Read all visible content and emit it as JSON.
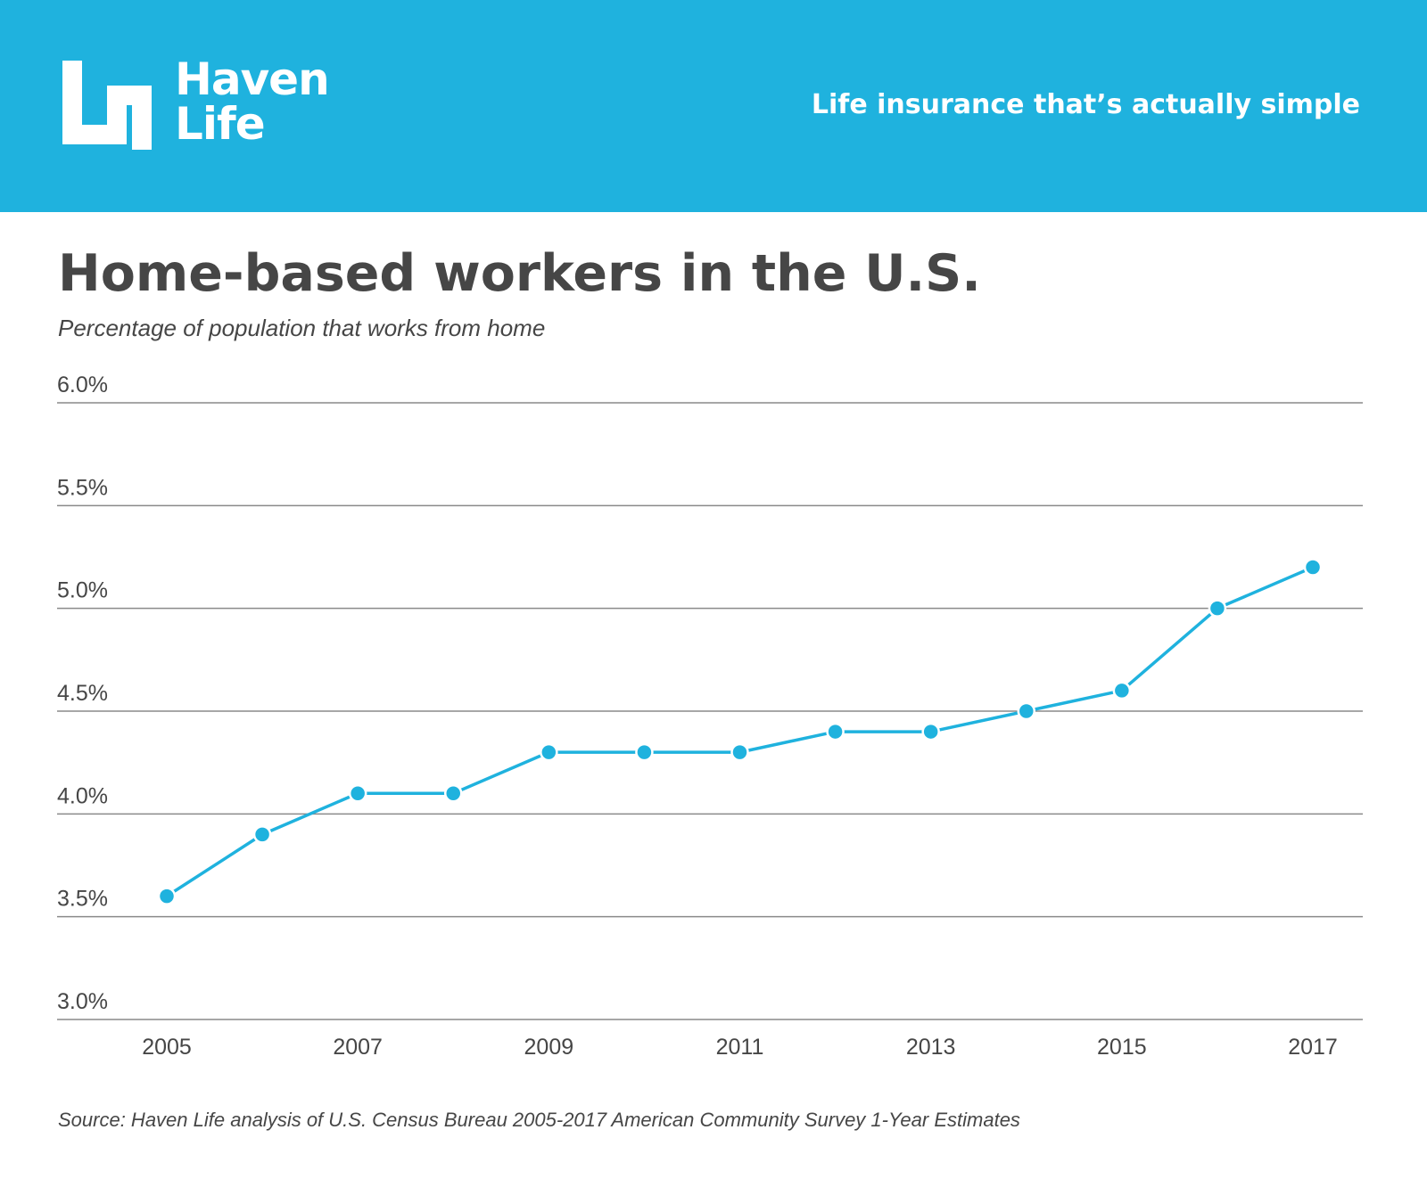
{
  "header": {
    "logo_line1": "Haven",
    "logo_line2": "Life",
    "tagline": "Life insurance that’s actually simple"
  },
  "colors": {
    "header_bg": "#1fb2de",
    "line": "#1fb2de",
    "text_dark": "#464646",
    "gridline": "#8a8a8a"
  },
  "icons": {
    "logo": "haven-life-logo-icon"
  },
  "chart_data": {
    "type": "line",
    "title": "Home-based workers in the U.S.",
    "subtitle": "Percentage of population that works from home",
    "xlabel": "",
    "ylabel": "",
    "x": [
      2005,
      2006,
      2007,
      2008,
      2009,
      2010,
      2011,
      2012,
      2013,
      2014,
      2015,
      2016,
      2017
    ],
    "series": [
      {
        "values": [
          3.6,
          3.9,
          4.1,
          4.1,
          4.3,
          4.3,
          4.3,
          4.4,
          4.4,
          4.5,
          4.6,
          5.0,
          5.2
        ]
      }
    ],
    "x_tick_labels": [
      "2005",
      "2007",
      "2009",
      "2011",
      "2013",
      "2015",
      "2017"
    ],
    "y_tick_labels": [
      "3.0%",
      "3.5%",
      "4.0%",
      "4.5%",
      "5.0%",
      "5.5%",
      "6.0%"
    ],
    "y_ticks": [
      3.0,
      3.5,
      4.0,
      4.5,
      5.0,
      5.5,
      6.0
    ],
    "ylim": [
      3.0,
      6.0
    ],
    "grid": true,
    "legend": "none"
  },
  "source": "Source: Haven Life analysis of U.S. Census Bureau 2005-2017 American Community Survey 1-Year Estimates"
}
